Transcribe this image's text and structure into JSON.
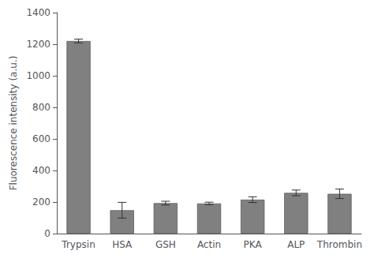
{
  "chart_data": {
    "type": "bar",
    "categories": [
      "Trypsin",
      "HSA",
      "GSH",
      "Actin",
      "PKA",
      "ALP",
      "Thrombin"
    ],
    "values": [
      1220,
      148,
      193,
      191,
      215,
      258,
      252
    ],
    "errors": [
      12,
      50,
      12,
      8,
      18,
      18,
      30
    ],
    "color": "#808080",
    "ylabel": "Fluorescence intensity (a.u.)",
    "ylim": [
      0,
      1400
    ],
    "yticks": [
      0,
      200,
      400,
      600,
      800,
      1000,
      1200,
      1400
    ],
    "grid": false
  }
}
